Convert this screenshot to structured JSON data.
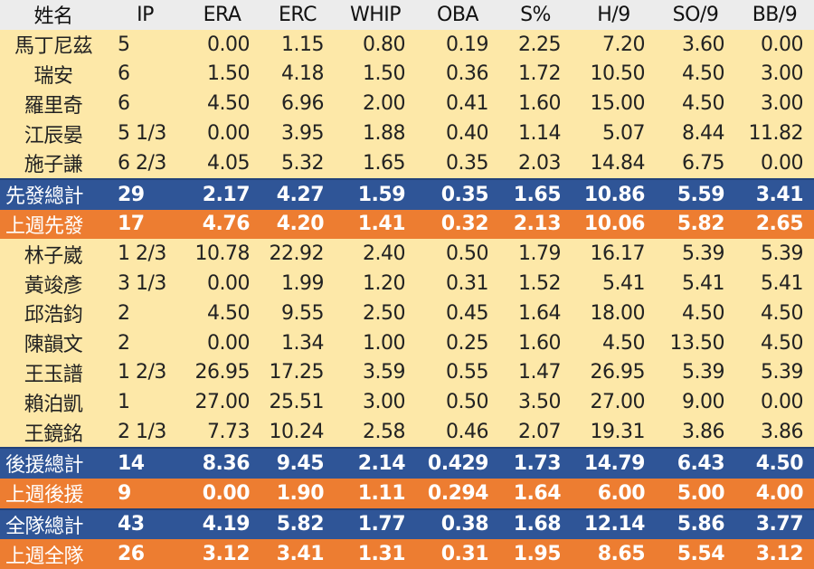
{
  "headers": [
    "姓名",
    "IP",
    "ERA",
    "ERC",
    "WHIP",
    "OBA",
    "S%",
    "H/9",
    "SO/9",
    "BB/9"
  ],
  "colors": {
    "player": "#fde8a8",
    "total": "#2f5597",
    "last_week": "#ed7d31",
    "header": "#ececec"
  },
  "rows": [
    {
      "type": "player",
      "cells": [
        "馬丁尼茲",
        "5",
        "0.00",
        "1.15",
        "0.80",
        "0.19",
        "2.25",
        "7.20",
        "3.60",
        "0.00"
      ]
    },
    {
      "type": "player",
      "cells": [
        "瑞安",
        "6",
        "1.50",
        "4.18",
        "1.50",
        "0.36",
        "1.72",
        "10.50",
        "4.50",
        "3.00"
      ]
    },
    {
      "type": "player",
      "cells": [
        "羅里奇",
        "6",
        "4.50",
        "6.96",
        "2.00",
        "0.41",
        "1.60",
        "15.00",
        "4.50",
        "3.00"
      ]
    },
    {
      "type": "player",
      "cells": [
        "江辰晏",
        "5 1/3",
        "0.00",
        "3.95",
        "1.88",
        "0.40",
        "1.14",
        "5.07",
        "8.44",
        "11.82"
      ]
    },
    {
      "type": "player",
      "cells": [
        "施子謙",
        "6 2/3",
        "4.05",
        "5.32",
        "1.65",
        "0.35",
        "2.03",
        "14.84",
        "6.75",
        "0.00"
      ]
    },
    {
      "type": "blue",
      "cells": [
        "先發總計",
        "29",
        "2.17",
        "4.27",
        "1.59",
        "0.35",
        "1.65",
        "10.86",
        "5.59",
        "3.41"
      ]
    },
    {
      "type": "orange",
      "cells": [
        "上週先發",
        "17",
        "4.76",
        "4.20",
        "1.41",
        "0.32",
        "2.13",
        "10.06",
        "5.82",
        "2.65"
      ]
    },
    {
      "type": "player",
      "cells": [
        "林子崴",
        "1 2/3",
        "10.78",
        "22.92",
        "2.40",
        "0.50",
        "1.79",
        "16.17",
        "5.39",
        "5.39"
      ]
    },
    {
      "type": "player",
      "cells": [
        "黃竣彥",
        "3 1/3",
        "0.00",
        "1.99",
        "1.20",
        "0.31",
        "1.52",
        "5.41",
        "5.41",
        "5.41"
      ]
    },
    {
      "type": "player",
      "cells": [
        "邱浩鈞",
        "2",
        "4.50",
        "9.55",
        "2.50",
        "0.45",
        "1.64",
        "18.00",
        "4.50",
        "4.50"
      ]
    },
    {
      "type": "player",
      "cells": [
        "陳韻文",
        "2",
        "0.00",
        "1.34",
        "1.00",
        "0.25",
        "1.60",
        "4.50",
        "13.50",
        "4.50"
      ]
    },
    {
      "type": "player",
      "cells": [
        "王玉譜",
        "1 2/3",
        "26.95",
        "17.25",
        "3.59",
        "0.55",
        "1.47",
        "26.95",
        "5.39",
        "5.39"
      ]
    },
    {
      "type": "player",
      "cells": [
        "賴泊凱",
        "1",
        "27.00",
        "25.51",
        "3.00",
        "0.50",
        "3.50",
        "27.00",
        "9.00",
        "0.00"
      ]
    },
    {
      "type": "player",
      "cells": [
        "王鏡銘",
        "2 1/3",
        "7.73",
        "10.24",
        "2.58",
        "0.46",
        "2.07",
        "19.31",
        "3.86",
        "3.86"
      ]
    },
    {
      "type": "blue",
      "cells": [
        "後援總計",
        "14",
        "8.36",
        "9.45",
        "2.14",
        "0.429",
        "1.73",
        "14.79",
        "6.43",
        "4.50"
      ]
    },
    {
      "type": "orange",
      "cells": [
        "上週後援",
        "9",
        "0.00",
        "1.90",
        "1.11",
        "0.294",
        "1.64",
        "6.00",
        "5.00",
        "4.00"
      ]
    },
    {
      "type": "blue",
      "cells": [
        "全隊總計",
        "43",
        "4.19",
        "5.82",
        "1.77",
        "0.38",
        "1.68",
        "12.14",
        "5.86",
        "3.77"
      ]
    },
    {
      "type": "orange",
      "cells": [
        "上週全隊",
        "26",
        "3.12",
        "3.41",
        "1.31",
        "0.31",
        "1.95",
        "8.65",
        "5.54",
        "3.12"
      ]
    }
  ]
}
